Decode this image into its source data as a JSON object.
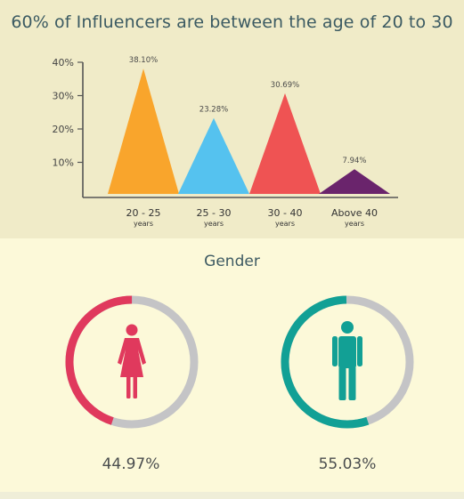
{
  "chart_data": [
    {
      "type": "area",
      "title": "60% of Influencers are between the age of 20 to 30",
      "categories": [
        "20 - 25",
        "25 - 30",
        "30 - 40",
        "Above 40"
      ],
      "category_sublabel": "years",
      "values": [
        38.1,
        23.28,
        30.69,
        7.94
      ],
      "value_labels": [
        "38.10%",
        "23.28%",
        "30.69%",
        "7.94%"
      ],
      "colors": [
        "#f9a52c",
        "#55c2ef",
        "#ef5353",
        "#6a246c"
      ],
      "yticks": [
        10,
        20,
        30,
        40
      ],
      "ytick_labels": [
        "10%",
        "20%",
        "30%",
        "40%"
      ],
      "ylim": [
        0,
        43
      ],
      "grid": false
    },
    {
      "type": "pie",
      "title": "Gender",
      "items": [
        {
          "icon": "female-icon",
          "value": 44.97,
          "label": "44.97%",
          "color": "#e0395d"
        },
        {
          "icon": "male-icon",
          "value": 55.03,
          "label": "55.03%",
          "color": "#12a095"
        }
      ],
      "track_color": "#c4c4c6"
    }
  ]
}
